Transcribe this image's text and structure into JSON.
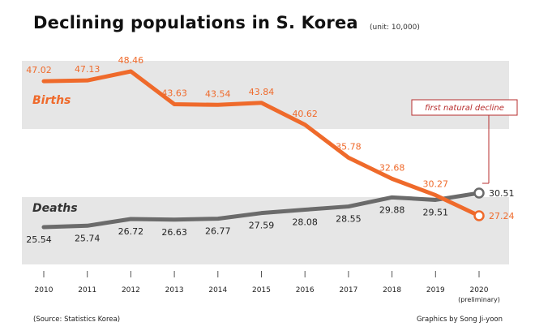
{
  "header": {
    "title": "Declining populations in S. Korea",
    "unit": "(unit: 10,000)"
  },
  "footer": {
    "source": "(Source: Statistics Korea)",
    "credit": "Graphics by Song Ji-yoon"
  },
  "colors": {
    "births": "#ef6a2b",
    "deaths": "#6b6b6b",
    "band": "#e6e6e6",
    "callout": "#b72d2d"
  },
  "chart_data": {
    "type": "line",
    "categories": [
      "2010",
      "2011",
      "2012",
      "2013",
      "2014",
      "2015",
      "2016",
      "2017",
      "2018",
      "2019",
      "2020"
    ],
    "category_sublabel": {
      "2020": "(preliminary)"
    },
    "series": [
      {
        "name": "Births",
        "values": [
          47.02,
          47.13,
          48.46,
          43.63,
          43.54,
          43.84,
          40.62,
          35.78,
          32.68,
          30.27,
          27.24
        ]
      },
      {
        "name": "Deaths",
        "values": [
          25.54,
          25.74,
          26.72,
          26.63,
          26.77,
          27.59,
          28.08,
          28.55,
          29.88,
          29.51,
          30.51
        ]
      }
    ],
    "annotations": [
      {
        "text": "first natural decline",
        "category": "2020"
      }
    ],
    "grid": false
  }
}
